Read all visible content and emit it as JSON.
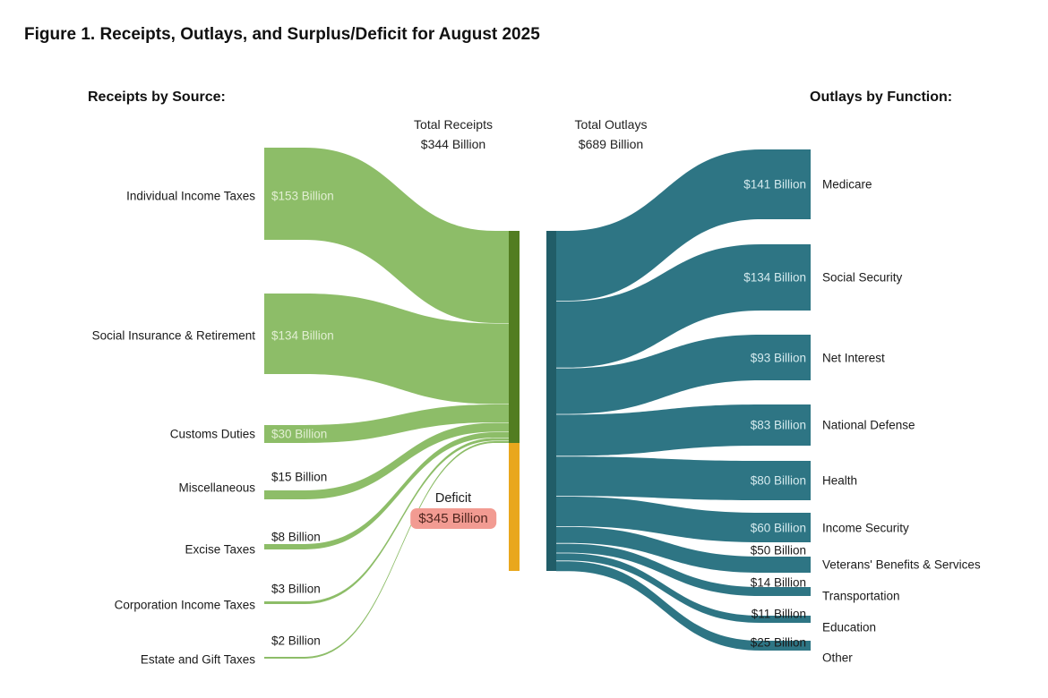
{
  "chart_data": {
    "type": "sankey",
    "title": "Figure 1. Receipts, Outlays, and Surplus/Deficit for August 2025",
    "left_header": "Receipts by Source:",
    "right_header": "Outlays by Function:",
    "unit": "Billion USD",
    "totals": {
      "receipts": {
        "label": "Total Receipts",
        "value": 344,
        "value_label": "$344 Billion"
      },
      "outlays": {
        "label": "Total Outlays",
        "value": 689,
        "value_label": "$689 Billion"
      },
      "deficit": {
        "label": "Deficit",
        "value": 345,
        "value_label": "$345 Billion"
      }
    },
    "receipts_by_source": [
      {
        "label": "Individual Income Taxes",
        "value": 153,
        "value_label": "$153 Billion"
      },
      {
        "label": "Social Insurance & Retirement",
        "value": 134,
        "value_label": "$134 Billion"
      },
      {
        "label": "Customs Duties",
        "value": 30,
        "value_label": "$30 Billion"
      },
      {
        "label": "Miscellaneous",
        "value": 15,
        "value_label": "$15 Billion"
      },
      {
        "label": "Excise Taxes",
        "value": 8,
        "value_label": "$8 Billion"
      },
      {
        "label": "Corporation Income Taxes",
        "value": 3,
        "value_label": "$3 Billion"
      },
      {
        "label": "Estate and Gift Taxes",
        "value": 2,
        "value_label": "$2 Billion"
      }
    ],
    "outlays_by_function": [
      {
        "label": "Medicare",
        "value": 141,
        "value_label": "$141 Billion"
      },
      {
        "label": "Social Security",
        "value": 134,
        "value_label": "$134 Billion"
      },
      {
        "label": "Net Interest",
        "value": 93,
        "value_label": "$93 Billion"
      },
      {
        "label": "National Defense",
        "value": 83,
        "value_label": "$83 Billion"
      },
      {
        "label": "Health",
        "value": 80,
        "value_label": "$80 Billion"
      },
      {
        "label": "Income Security",
        "value": 60,
        "value_label": "$60 Billion"
      },
      {
        "label": "Veterans' Benefits & Services",
        "value": 50,
        "value_label": "$50 Billion"
      },
      {
        "label": "Transportation",
        "value": 14,
        "value_label": "$14 Billion"
      },
      {
        "label": "Education",
        "value": 11,
        "value_label": "$11 Billion"
      },
      {
        "label": "Other",
        "value": 25,
        "value_label": "$25 Billion"
      }
    ],
    "colors": {
      "receipt_flow": "#8dbd68",
      "receipt_node": "#527d21",
      "deficit_node": "#e9a71d",
      "outlay_flow": "#2e7584",
      "outlay_node": "#215d68",
      "deficit_highlight": "#f29b92",
      "value_text_on_green": "#e2efd3",
      "value_text_on_teal": "#d4eaee",
      "text": "#1a1a1a"
    }
  }
}
